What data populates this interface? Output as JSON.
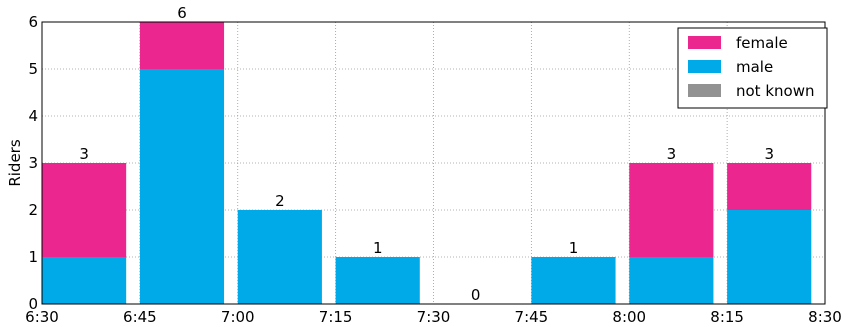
{
  "chart_data": {
    "type": "bar",
    "stacked": true,
    "ylabel": "Riders",
    "xlabel": "",
    "title": "",
    "ylim": [
      0,
      6
    ],
    "y_ticks": [
      "0",
      "1",
      "2",
      "3",
      "4",
      "5",
      "6"
    ],
    "x_ticks": [
      "6:30",
      "6:45",
      "7:00",
      "7:15",
      "7:30",
      "7:45",
      "8:00",
      "8:15",
      "8:30"
    ],
    "categories": [
      "6:30",
      "6:45",
      "7:00",
      "7:15",
      "7:30",
      "7:45",
      "8:00",
      "8:15"
    ],
    "series": [
      {
        "name": "female",
        "color": "#ec268f",
        "values": [
          2,
          1,
          0,
          0,
          0,
          0,
          2,
          1
        ]
      },
      {
        "name": "male",
        "color": "#00a9e8",
        "values": [
          1,
          5,
          2,
          1,
          0,
          1,
          1,
          2
        ]
      },
      {
        "name": "not known",
        "color": "#929292",
        "values": [
          0,
          0,
          0,
          0,
          0,
          0,
          0,
          0
        ]
      }
    ],
    "totals": [
      3,
      6,
      2,
      1,
      0,
      1,
      3,
      3
    ],
    "grid": true,
    "legend_position": "top-right"
  }
}
